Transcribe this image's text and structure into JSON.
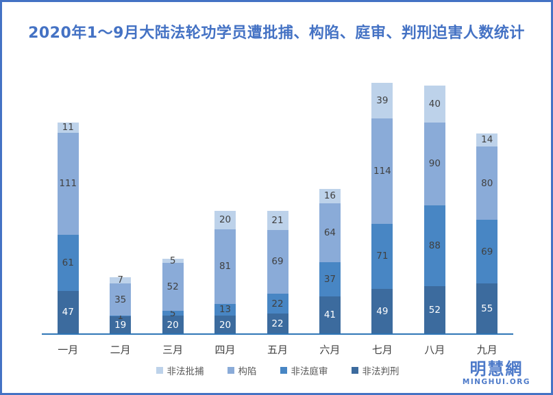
{
  "title": "2020年1～9月大陆法轮功学员遭批捕、构陷、庭审、判刑迫害人数统计",
  "watermark": {
    "cjk": "明慧網",
    "latin": "MINGHUI.ORG"
  },
  "colors": {
    "frame_border": "#4472c4",
    "title_text": "#4472c4",
    "axis_line": "#2e75b6",
    "month_label": "#404040",
    "legend_text": "#595959",
    "watermark": "#4d7ac9"
  },
  "chart_data": {
    "type": "bar",
    "stacked": true,
    "title": "2020年1～9月大陆法轮功学员遭批捕、构陷、庭审、判刑迫害人数统计",
    "xlabel": "",
    "ylabel": "",
    "grid": false,
    "y_axis_visible": false,
    "legend_position": "bottom",
    "ylim": [
      0,
      280
    ],
    "categories": [
      "一月",
      "二月",
      "三月",
      "四月",
      "五月",
      "六月",
      "七月",
      "八月",
      "九月"
    ],
    "series": [
      {
        "name": "非法判刑",
        "color": "#3c6b9e",
        "label_color": "#ffffff",
        "values": [
          47,
          19,
          20,
          20,
          22,
          41,
          49,
          52,
          55
        ]
      },
      {
        "name": "非法庭审",
        "color": "#4886c4",
        "label_color": "#404040",
        "values": [
          61,
          1,
          5,
          13,
          22,
          37,
          71,
          88,
          69
        ]
      },
      {
        "name": "构陷",
        "color": "#8aabd8",
        "label_color": "#404040",
        "values": [
          111,
          35,
          52,
          81,
          69,
          64,
          114,
          90,
          80
        ]
      },
      {
        "name": "非法批捕",
        "color": "#bdd2ea",
        "label_color": "#404040",
        "values": [
          11,
          7,
          5,
          20,
          21,
          16,
          39,
          40,
          14
        ]
      }
    ],
    "legend_order": [
      "非法批捕",
      "构陷",
      "非法庭审",
      "非法判刑"
    ],
    "column_totals": [
      230,
      62,
      82,
      134,
      134,
      158,
      273,
      270,
      218
    ]
  }
}
